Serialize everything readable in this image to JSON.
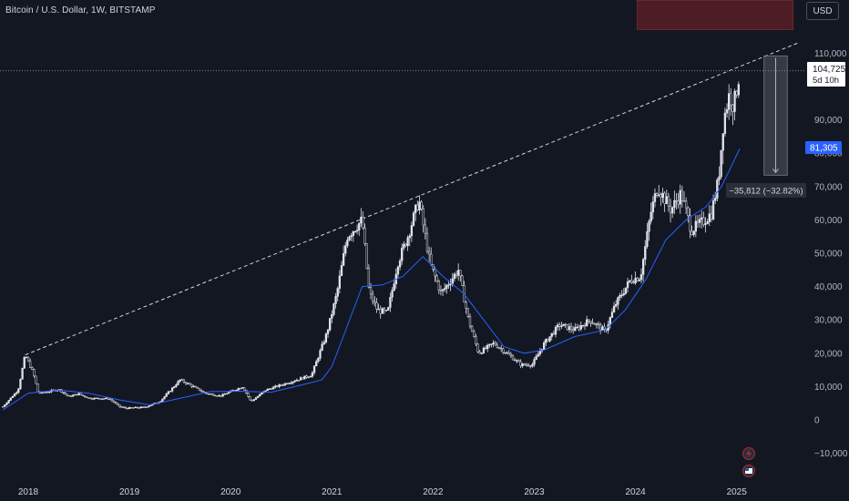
{
  "header": {
    "title": "Bitcoin / U.S. Dollar, 1W, BITSTAMP",
    "currency": "USD"
  },
  "badges": {
    "price": "104,725",
    "countdown": "5d 10h",
    "ma_value": "81,305",
    "measure": "−35,812 (−32.82%)"
  },
  "colors": {
    "background": "#131722",
    "candle": "#e0e3eb",
    "ma_line": "#2962ff",
    "ma_badge": "#2962ff",
    "text": "#d1d4dc",
    "measure_box": "rgba(120,123,134,0.35)",
    "top_box": "#4d1c24"
  },
  "chart_data": {
    "type": "candlestick",
    "title": "Bitcoin / U.S. Dollar, 1W, BITSTAMP",
    "y_ticks": [
      110000,
      90000,
      80000,
      70000,
      60000,
      50000,
      40000,
      30000,
      20000,
      10000,
      0,
      -10000
    ],
    "y_tick_labels": [
      "110,000",
      "90,000",
      "80,000",
      "70,000",
      "60,000",
      "50,000",
      "40,000",
      "30,000",
      "20,000",
      "10,000",
      "0",
      "−10,000"
    ],
    "ylim": [
      -10000,
      110000
    ],
    "x_ticks": [
      "2018",
      "2019",
      "2020",
      "2021",
      "2022",
      "2023",
      "2024",
      "2025"
    ],
    "price_path": [
      [
        2017.75,
        4000
      ],
      [
        2017.9,
        9000
      ],
      [
        2017.97,
        19500
      ],
      [
        2018.05,
        14000
      ],
      [
        2018.1,
        8000
      ],
      [
        2018.2,
        8500
      ],
      [
        2018.3,
        9200
      ],
      [
        2018.4,
        7000
      ],
      [
        2018.5,
        7800
      ],
      [
        2018.6,
        6500
      ],
      [
        2018.8,
        6400
      ],
      [
        2018.9,
        4000
      ],
      [
        2018.97,
        3500
      ],
      [
        2019.15,
        3800
      ],
      [
        2019.3,
        5500
      ],
      [
        2019.5,
        12000
      ],
      [
        2019.6,
        10500
      ],
      [
        2019.75,
        8000
      ],
      [
        2019.9,
        7200
      ],
      [
        2020.0,
        8500
      ],
      [
        2020.12,
        10000
      ],
      [
        2020.2,
        5500
      ],
      [
        2020.35,
        9000
      ],
      [
        2020.6,
        11500
      ],
      [
        2020.8,
        13500
      ],
      [
        2020.95,
        26000
      ],
      [
        2021.05,
        38000
      ],
      [
        2021.15,
        55000
      ],
      [
        2021.3,
        60000
      ],
      [
        2021.37,
        38000
      ],
      [
        2021.45,
        33000
      ],
      [
        2021.55,
        32000
      ],
      [
        2021.65,
        47000
      ],
      [
        2021.75,
        55000
      ],
      [
        2021.86,
        66000
      ],
      [
        2021.97,
        47000
      ],
      [
        2022.08,
        38000
      ],
      [
        2022.25,
        45000
      ],
      [
        2022.35,
        30000
      ],
      [
        2022.45,
        20000
      ],
      [
        2022.6,
        23000
      ],
      [
        2022.75,
        19500
      ],
      [
        2022.87,
        16500
      ],
      [
        2022.98,
        16600
      ],
      [
        2023.1,
        23000
      ],
      [
        2023.25,
        28500
      ],
      [
        2023.4,
        27000
      ],
      [
        2023.55,
        30000
      ],
      [
        2023.7,
        26500
      ],
      [
        2023.8,
        34500
      ],
      [
        2023.95,
        42000
      ],
      [
        2024.05,
        43000
      ],
      [
        2024.15,
        62000
      ],
      [
        2024.22,
        70000
      ],
      [
        2024.35,
        63000
      ],
      [
        2024.45,
        68000
      ],
      [
        2024.55,
        57000
      ],
      [
        2024.65,
        59000
      ],
      [
        2024.75,
        62000
      ],
      [
        2024.82,
        72000
      ],
      [
        2024.87,
        90000
      ],
      [
        2024.93,
        98000
      ],
      [
        2024.97,
        94000
      ],
      [
        2025.03,
        104725
      ]
    ],
    "ma_path": [
      [
        2017.75,
        3000
      ],
      [
        2018.0,
        8000
      ],
      [
        2018.3,
        9000
      ],
      [
        2018.6,
        8000
      ],
      [
        2018.9,
        6000
      ],
      [
        2019.2,
        4500
      ],
      [
        2019.5,
        6500
      ],
      [
        2019.8,
        8500
      ],
      [
        2020.1,
        8600
      ],
      [
        2020.4,
        8300
      ],
      [
        2020.7,
        10500
      ],
      [
        2020.9,
        12000
      ],
      [
        2021.0,
        16000
      ],
      [
        2021.15,
        28000
      ],
      [
        2021.3,
        40000
      ],
      [
        2021.5,
        40500
      ],
      [
        2021.7,
        43000
      ],
      [
        2021.9,
        49000
      ],
      [
        2022.1,
        43000
      ],
      [
        2022.3,
        38000
      ],
      [
        2022.5,
        30000
      ],
      [
        2022.7,
        22000
      ],
      [
        2022.9,
        20000
      ],
      [
        2023.1,
        21000
      ],
      [
        2023.4,
        25000
      ],
      [
        2023.7,
        27000
      ],
      [
        2023.9,
        33000
      ],
      [
        2024.1,
        42000
      ],
      [
        2024.3,
        54000
      ],
      [
        2024.5,
        60000
      ],
      [
        2024.7,
        64000
      ],
      [
        2024.85,
        70000
      ],
      [
        2025.03,
        81305
      ]
    ],
    "trendline": [
      [
        2017.97,
        19500
      ],
      [
        2025.6,
        113000
      ]
    ],
    "price_line": 104725,
    "measure": {
      "x_start": 2025.27,
      "x_end": 2025.5,
      "from": 109200,
      "to": 73400
    }
  }
}
